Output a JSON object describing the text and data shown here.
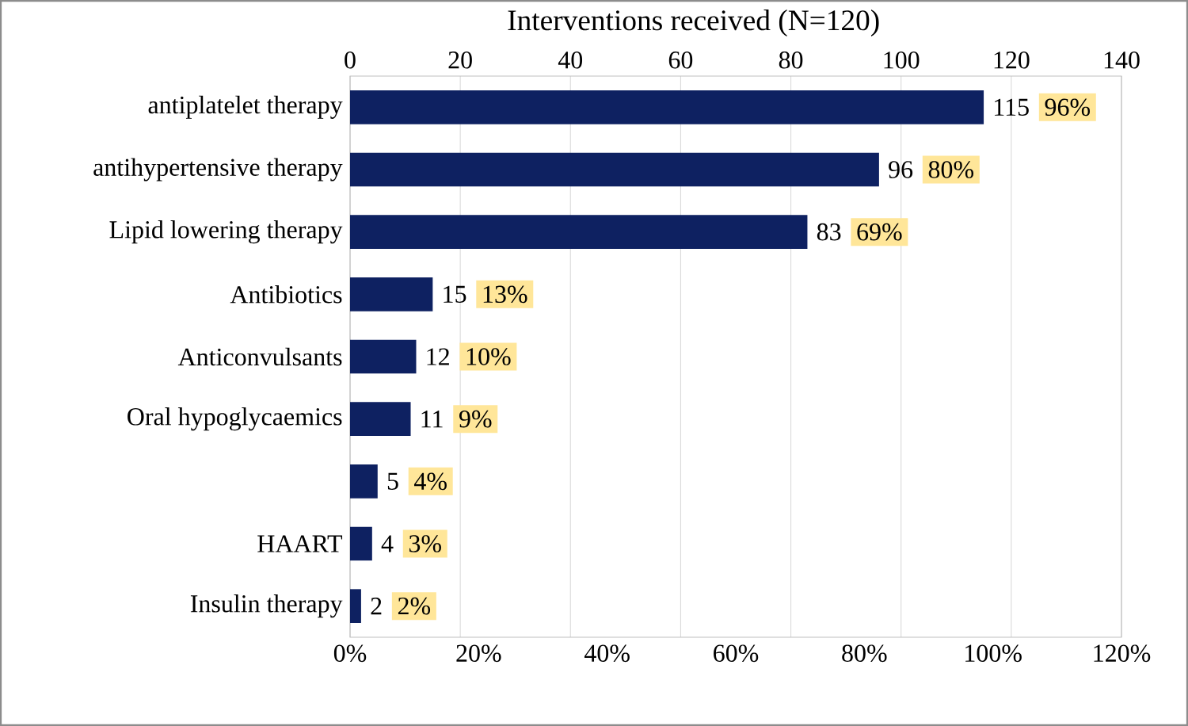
{
  "chart_data": {
    "type": "bar",
    "orientation": "horizontal",
    "title": "Interventions received (N=120)",
    "categories": [
      "antiplatelet therapy",
      "antihypertensive therapy",
      "Lipid lowering therapy",
      "Antibiotics",
      "Anticonvulsants",
      "Oral hypoglycaemics",
      null,
      "HAART",
      "Insulin therapy"
    ],
    "series": [
      {
        "color": "#0e2161",
        "axis": "x2",
        "values": [
          115,
          96,
          83,
          15,
          12,
          11,
          5,
          4,
          2
        ]
      }
    ],
    "annotations": [
      "96%",
      "80%",
      "69%",
      "13%",
      "10%",
      "9%",
      "4%",
      "3%",
      "2%"
    ],
    "x2lim": [
      0,
      140
    ],
    "x2ticks": [
      0,
      20,
      40,
      60,
      80,
      100,
      120,
      140
    ],
    "xlim": [
      0,
      120
    ],
    "xticks": [
      {
        "value": 0,
        "label": "0%"
      },
      {
        "value": 20,
        "label": "20%"
      },
      {
        "value": 40,
        "label": "40%"
      },
      {
        "value": 60,
        "label": "60%"
      },
      {
        "value": 80,
        "label": "80%"
      },
      {
        "value": 100,
        "label": "100%"
      },
      {
        "value": 120,
        "label": "120%"
      }
    ],
    "data_labels": true,
    "grid": "x"
  }
}
